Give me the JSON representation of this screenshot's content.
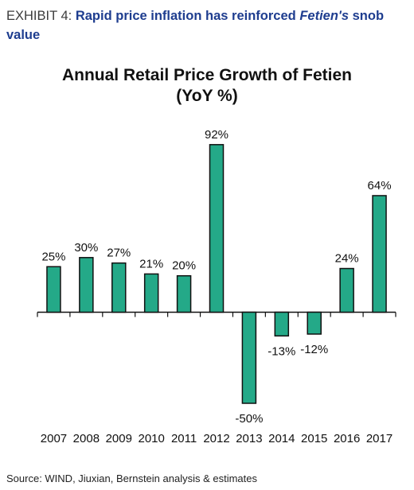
{
  "exhibit": {
    "label": "EXHIBIT 4:",
    "title_before": "Rapid price inflation has reinforced",
    "title_brand": "Fetien's",
    "title_after": "snob value"
  },
  "source": "Source: WIND, Jiuxian, Bernstein analysis & estimates",
  "colors": {
    "bar_fill": "#24a988",
    "bar_stroke": "#111111",
    "title": "#1e3d8f"
  },
  "chart_data": {
    "type": "bar",
    "title_line1": "Annual Retail Price Growth of Fetien",
    "title_line2": "(YoY %)",
    "categories": [
      "2007",
      "2008",
      "2009",
      "2010",
      "2011",
      "2012",
      "2013",
      "2014",
      "2015",
      "2016",
      "2017"
    ],
    "values": [
      25,
      30,
      27,
      21,
      20,
      92,
      -50,
      -13,
      -12,
      24,
      64
    ],
    "data_labels": [
      "25%",
      "30%",
      "27%",
      "21%",
      "20%",
      "92%",
      "-50%",
      "-13%",
      "-12%",
      "24%",
      "64%"
    ],
    "xlabel": "",
    "ylabel": "",
    "ylim": [
      -50,
      92
    ],
    "grid": false,
    "legend": "none"
  }
}
